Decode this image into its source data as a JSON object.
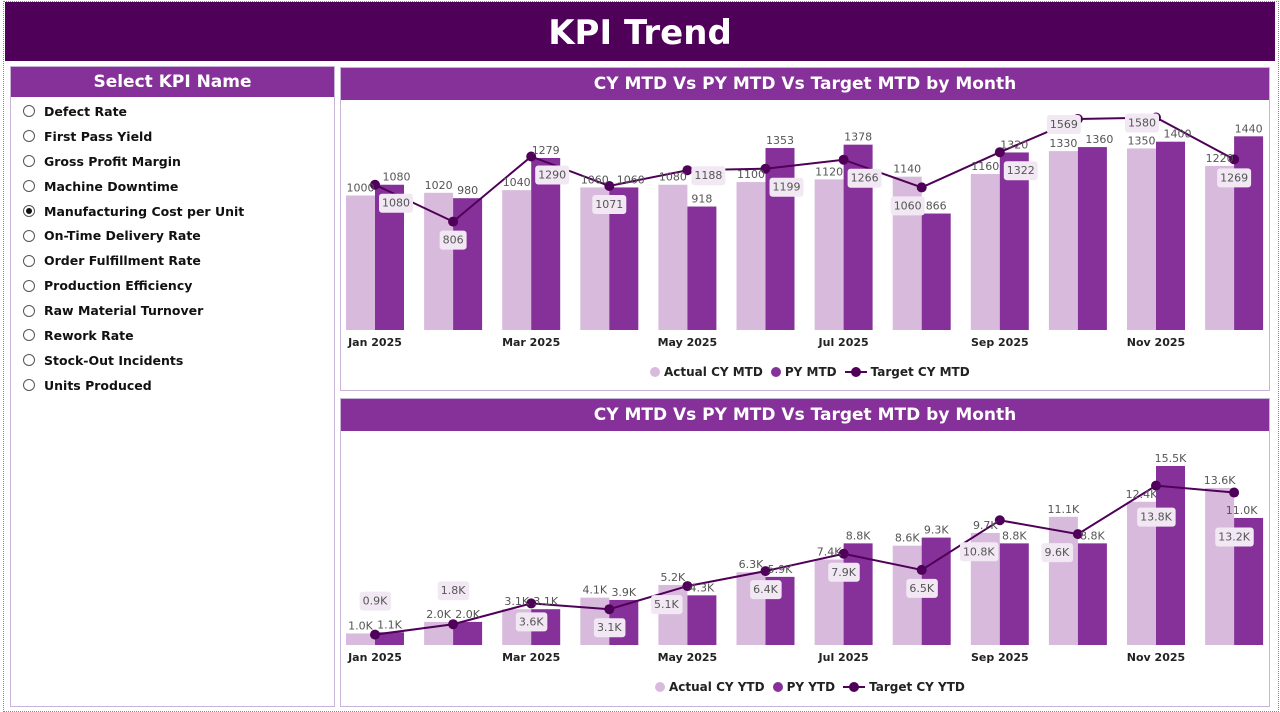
{
  "header": {
    "title": "KPI Trend"
  },
  "sidebar": {
    "title": "Select KPI Name",
    "selected": "Manufacturing Cost per Unit",
    "items": [
      "Defect Rate",
      "First Pass Yield",
      "Gross Profit Margin",
      "Machine Downtime",
      "Manufacturing Cost per Unit",
      "On-Time Delivery Rate",
      "Order Fulfillment Rate",
      "Production Efficiency",
      "Raw Material Turnover",
      "Rework Rate",
      "Stock-Out Incidents",
      "Units Produced"
    ]
  },
  "colors": {
    "header": "#4f0058",
    "panel_title": "#86319a",
    "actual": "#d8bbdc",
    "py": "#86319a",
    "target": "#4f0058"
  },
  "chart_data": [
    {
      "type": "bar+line",
      "title": "CY MTD Vs PY MTD Vs Target MTD by Month",
      "categories": [
        "Jan 2025",
        "Feb 2025",
        "Mar 2025",
        "Apr 2025",
        "May 2025",
        "Jun 2025",
        "Jul 2025",
        "Aug 2025",
        "Sep 2025",
        "Oct 2025",
        "Nov 2025",
        "Dec 2025"
      ],
      "tick_labels": [
        "Jan 2025",
        "",
        "Mar 2025",
        "",
        "May 2025",
        "",
        "Jul 2025",
        "",
        "Sep 2025",
        "",
        "Nov 2025",
        ""
      ],
      "series": [
        {
          "name": "Actual CY MTD",
          "kind": "bar",
          "values": [
            1000,
            1020,
            1040,
            1060,
            1080,
            1100,
            1120,
            1140,
            1160,
            1330,
            1350,
            1220
          ]
        },
        {
          "name": "PY MTD",
          "kind": "bar",
          "values": [
            1080,
            980,
            1279,
            1060,
            918,
            1353,
            1378,
            866,
            1320,
            1360,
            1400,
            1440
          ]
        },
        {
          "name": "Target CY MTD",
          "kind": "line",
          "values": [
            1080,
            806,
            1290,
            1071,
            1188,
            1199,
            1266,
            1060,
            1322,
            1569,
            1580,
            1269
          ]
        }
      ],
      "ylim": [
        0,
        1600
      ],
      "grid": false,
      "legend": "bottom"
    },
    {
      "type": "bar+line",
      "title": "CY MTD Vs PY MTD Vs Target MTD by Month",
      "categories": [
        "Jan 2025",
        "Feb 2025",
        "Mar 2025",
        "Apr 2025",
        "May 2025",
        "Jun 2025",
        "Jul 2025",
        "Aug 2025",
        "Sep 2025",
        "Oct 2025",
        "Nov 2025",
        "Dec 2025"
      ],
      "tick_labels": [
        "Jan 2025",
        "",
        "Mar 2025",
        "",
        "May 2025",
        "",
        "Jul 2025",
        "",
        "Sep 2025",
        "",
        "Nov 2025",
        ""
      ],
      "series": [
        {
          "name": "Actual CY YTD",
          "kind": "bar",
          "values": [
            1000,
            2000,
            3100,
            4100,
            5200,
            6300,
            7400,
            8600,
            9700,
            11100,
            12400,
            13600
          ]
        },
        {
          "name": "PY YTD",
          "kind": "bar",
          "values": [
            1100,
            2000,
            3100,
            3900,
            4300,
            5900,
            8800,
            9300,
            8800,
            8800,
            15500,
            11000
          ]
        },
        {
          "name": "Target CY YTD",
          "kind": "line",
          "values": [
            900,
            1800,
            3600,
            3100,
            5100,
            6400,
            7900,
            6500,
            10800,
            9600,
            13800,
            13200
          ]
        }
      ],
      "ylim": [
        0,
        16000
      ],
      "grid": false,
      "legend": "bottom"
    }
  ]
}
